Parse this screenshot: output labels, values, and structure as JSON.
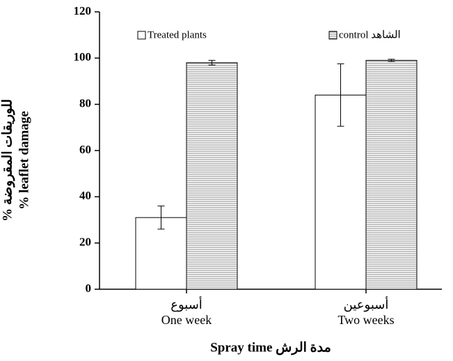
{
  "chart_data": {
    "type": "bar",
    "categories": [
      [
        "أسبوع",
        "One week"
      ],
      [
        "أسبوعين",
        "Two weeks"
      ]
    ],
    "series": [
      {
        "name": "Treated plants",
        "color": "#ffffff",
        "hatch": false,
        "values": [
          31,
          84
        ],
        "errors": [
          5,
          13.5
        ]
      },
      {
        "name": "control الشاهد",
        "color": "#a0a0a0",
        "hatch": true,
        "values": [
          98,
          99
        ],
        "errors": [
          1,
          0.5
        ]
      }
    ],
    "ylabel": [
      "% للوريقات المقروضة",
      "% leaflet damage"
    ],
    "xlabel": "Spray time  مدة الرش",
    "ylim": [
      0,
      120
    ],
    "yticks": [
      0,
      20,
      40,
      60,
      80,
      100,
      120
    ],
    "grid": false
  }
}
